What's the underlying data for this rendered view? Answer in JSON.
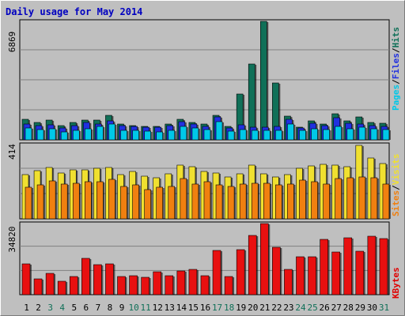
{
  "chart_data": [
    {
      "type": "bar",
      "title": "Daily usage for May 2014",
      "panel": "top",
      "ymax_label": "6869",
      "ylim": [
        0,
        6869
      ],
      "categories": [
        "1",
        "2",
        "3",
        "4",
        "5",
        "6",
        "7",
        "8",
        "9",
        "10",
        "11",
        "12",
        "13",
        "14",
        "15",
        "16",
        "17",
        "18",
        "19",
        "20",
        "21",
        "22",
        "23",
        "24",
        "25",
        "26",
        "27",
        "28",
        "29",
        "30",
        "31"
      ],
      "axis_legend": [
        {
          "text": "Pages",
          "color": "#00c8e8"
        },
        {
          "text": "/",
          "color": "#000000"
        },
        {
          "text": "Files",
          "color": "#2030e0"
        },
        {
          "text": "/",
          "color": "#000000"
        },
        {
          "text": "Hits",
          "color": "#107058"
        }
      ],
      "series": [
        {
          "name": "Hits",
          "color": "#107058",
          "values": [
            1200,
            1030,
            1160,
            820,
            1000,
            1140,
            1160,
            1400,
            930,
            810,
            760,
            790,
            900,
            1200,
            1010,
            900,
            1430,
            760,
            2650,
            4400,
            6860,
            3320,
            1380,
            720,
            1110,
            900,
            1500,
            1110,
            1350,
            990,
            960
          ]
        },
        {
          "name": "Files",
          "color": "#2030e0",
          "values": [
            930,
            820,
            860,
            700,
            830,
            1000,
            930,
            1110,
            830,
            800,
            720,
            750,
            820,
            1060,
            920,
            770,
            1350,
            700,
            850,
            730,
            750,
            800,
            1180,
            700,
            970,
            830,
            1280,
            950,
            900,
            820,
            780
          ]
        },
        {
          "name": "Pages",
          "color": "#00c8e8",
          "values": [
            680,
            580,
            620,
            440,
            560,
            630,
            780,
            910,
            560,
            530,
            500,
            480,
            570,
            780,
            680,
            590,
            1040,
            490,
            580,
            540,
            560,
            570,
            900,
            560,
            620,
            580,
            780,
            620,
            740,
            650,
            580
          ]
        }
      ]
    },
    {
      "type": "bar",
      "panel": "middle",
      "ymax_label": "414",
      "ylim": [
        0,
        414
      ],
      "categories": [
        "1",
        "2",
        "3",
        "4",
        "5",
        "6",
        "7",
        "8",
        "9",
        "10",
        "11",
        "12",
        "13",
        "14",
        "15",
        "16",
        "17",
        "18",
        "19",
        "20",
        "21",
        "22",
        "23",
        "24",
        "25",
        "26",
        "27",
        "28",
        "29",
        "30",
        "31"
      ],
      "axis_legend": [
        {
          "text": "Sites",
          "color": "#f08010"
        },
        {
          "text": "/",
          "color": "#000000"
        },
        {
          "text": "Visits",
          "color": "#f0e030"
        }
      ],
      "series": [
        {
          "name": "Visits",
          "color": "#f0e030",
          "values": [
            245,
            270,
            285,
            255,
            275,
            275,
            280,
            285,
            245,
            265,
            240,
            230,
            250,
            300,
            290,
            265,
            255,
            235,
            250,
            300,
            250,
            235,
            245,
            280,
            295,
            305,
            300,
            290,
            410,
            340,
            310
          ]
        },
        {
          "name": "Sites",
          "color": "#f08010",
          "values": [
            175,
            190,
            210,
            195,
            200,
            205,
            205,
            220,
            180,
            190,
            165,
            175,
            180,
            225,
            195,
            205,
            190,
            180,
            195,
            200,
            200,
            190,
            195,
            215,
            205,
            195,
            225,
            230,
            235,
            230,
            195
          ]
        }
      ]
    },
    {
      "type": "bar",
      "panel": "bottom",
      "ymax_label": "34820",
      "ylim": [
        0,
        34820
      ],
      "categories": [
        "1",
        "2",
        "3",
        "4",
        "5",
        "6",
        "7",
        "8",
        "9",
        "10",
        "11",
        "12",
        "13",
        "14",
        "15",
        "16",
        "17",
        "18",
        "19",
        "20",
        "21",
        "22",
        "23",
        "24",
        "25",
        "26",
        "27",
        "28",
        "29",
        "30",
        "31"
      ],
      "axis_legend": [
        {
          "text": "KBytes",
          "color": "#e00000"
        }
      ],
      "series": [
        {
          "name": "KBytes",
          "color": "#e81010",
          "values": [
            15000,
            7800,
            10400,
            6600,
            9000,
            17800,
            14800,
            15000,
            9000,
            9200,
            8700,
            11300,
            9200,
            11700,
            12500,
            9200,
            21600,
            8800,
            22000,
            29200,
            34700,
            23200,
            12200,
            18400,
            18600,
            26900,
            21000,
            28000,
            21300,
            28700,
            27400
          ]
        }
      ]
    }
  ],
  "x_tick_colors": [
    "#000000",
    "#000000",
    "#107058",
    "#107058",
    "#000000",
    "#000000",
    "#000000",
    "#000000",
    "#000000",
    "#107058",
    "#107058",
    "#000000",
    "#000000",
    "#000000",
    "#000000",
    "#000000",
    "#107058",
    "#107058",
    "#000000",
    "#000000",
    "#000000",
    "#000000",
    "#000000",
    "#107058",
    "#107058",
    "#000000",
    "#000000",
    "#000000",
    "#000000",
    "#000000",
    "#107058"
  ],
  "colors": {
    "background": "#bfbfbf",
    "frame": "#000000",
    "title": "#0000c0",
    "gridline": "#808080"
  }
}
